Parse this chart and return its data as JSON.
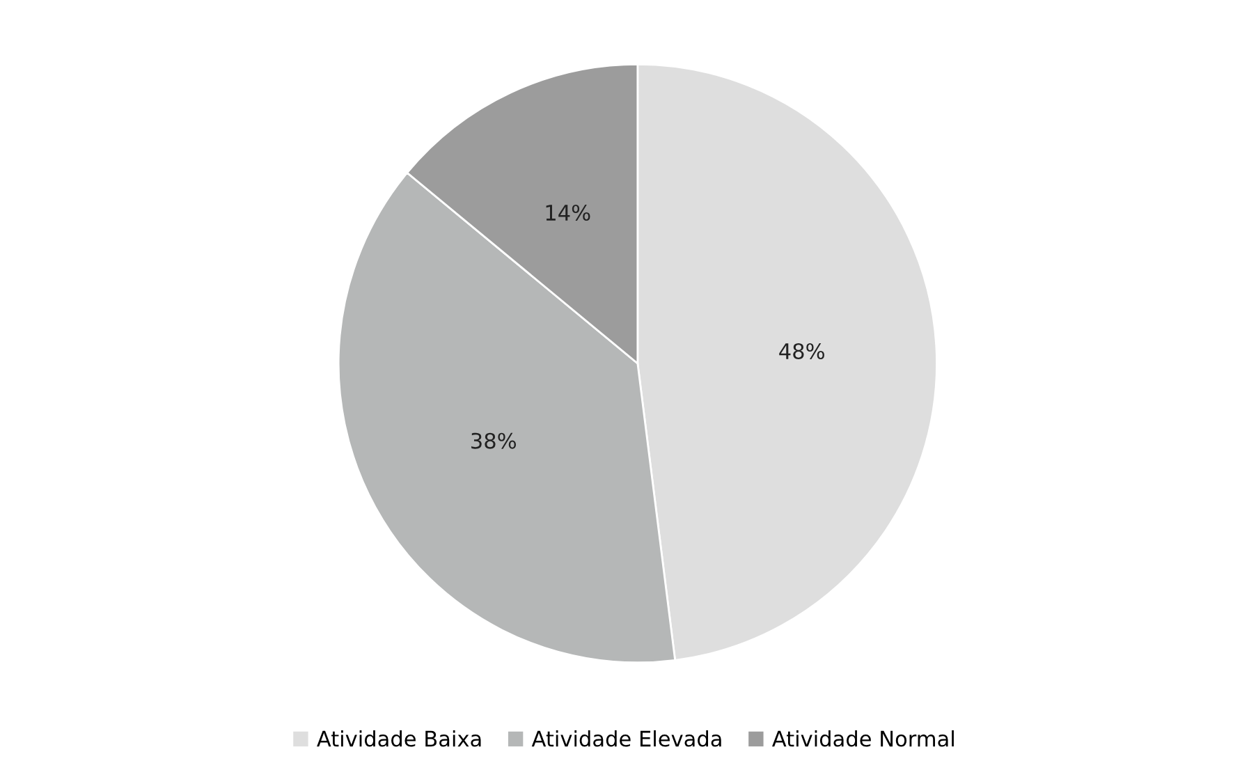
{
  "chart_data": {
    "type": "pie",
    "categories": [
      "Atividade Baixa",
      "Atividade Elevada",
      "Atividade Normal"
    ],
    "values": [
      48,
      38,
      14
    ],
    "value_labels": [
      "48%",
      "38%",
      "14%"
    ],
    "colors": [
      "#dedede",
      "#b5b7b7",
      "#9c9c9c"
    ],
    "legend": "bottom"
  }
}
